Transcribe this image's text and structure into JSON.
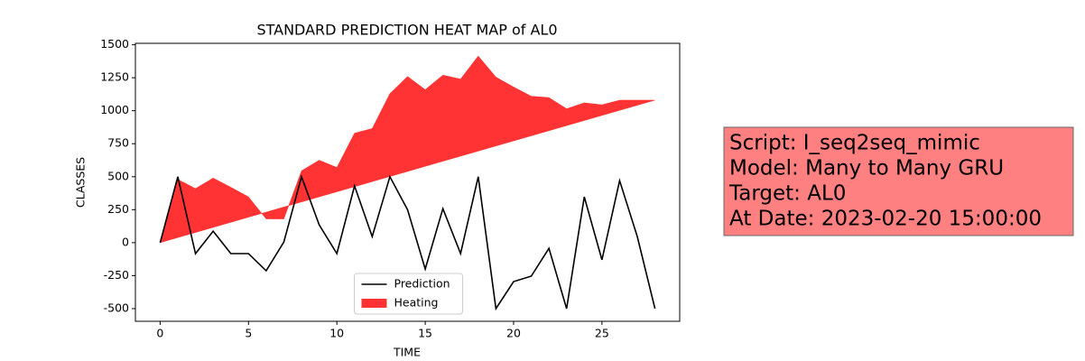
{
  "chart_data": {
    "type": "line",
    "title": "STANDARD PREDICTION HEAT MAP of AL0",
    "xlabel": "TIME",
    "ylabel": "CLASSES",
    "x": [
      0,
      1,
      2,
      3,
      4,
      5,
      6,
      7,
      8,
      9,
      10,
      11,
      12,
      13,
      14,
      15,
      16,
      17,
      18,
      19,
      20,
      21,
      22,
      23,
      24,
      25,
      26,
      27,
      28
    ],
    "series": [
      {
        "name": "Prediction",
        "color": "#000000",
        "kind": "line",
        "values": [
          0,
          500,
          -83,
          87,
          -83,
          -83,
          -213,
          5,
          500,
          135,
          -83,
          430,
          46,
          500,
          250,
          -200,
          258,
          -83,
          500,
          -500,
          -295,
          -254,
          -43,
          -500,
          347,
          -130,
          470,
          46,
          -500
        ]
      },
      {
        "name": "Heating",
        "color": "#ff3333",
        "kind": "area",
        "values": [
          0,
          480,
          410,
          490,
          420,
          347,
          180,
          180,
          545,
          625,
          570,
          830,
          865,
          1130,
          1260,
          1160,
          1270,
          1240,
          1415,
          1255,
          1180,
          1110,
          1100,
          1015,
          1060,
          1045,
          1080,
          1080,
          1080
        ],
        "lower": [
          0,
          38.6,
          77.1,
          115.7,
          154.3,
          192.9,
          231.4,
          270,
          308.6,
          347.1,
          385.7,
          424.3,
          462.9,
          501.4,
          540,
          578.6,
          617.1,
          655.7,
          694.3,
          732.9,
          771.4,
          810,
          848.6,
          887.1,
          925.7,
          964.3,
          1002.9,
          1041.4,
          1080
        ]
      }
    ],
    "xlim": [
      -1.4,
      29.4
    ],
    "xticks": [
      0,
      5,
      10,
      15,
      20,
      25
    ],
    "ylim": [
      -596,
      1511
    ],
    "yticks": [
      -500,
      -250,
      0,
      250,
      500,
      750,
      1000,
      1250,
      1500
    ],
    "legend": "lower center",
    "annotation": {
      "lines": [
        "Script: I_seq2seq_mimic",
        "Model: Many to Many GRU",
        "Target: AL0",
        "At Date: 2023-02-20 15:00:00"
      ],
      "color": "#ff8080"
    }
  }
}
